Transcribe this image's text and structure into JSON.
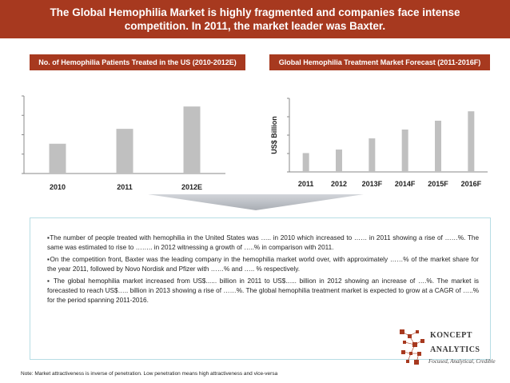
{
  "header": {
    "title_line1": "The Global Hemophilia Market  is highly fragmented and companies face intense",
    "title_line2": "competition. In  2011, the market leader was Baxter."
  },
  "colors": {
    "accent": "#a7391f",
    "bar": "#c0c0c0",
    "box_border": "#b7dde4"
  },
  "chart_data": [
    {
      "type": "bar",
      "title": "No. of Hemophilia Patients Treated in the US (2010-2012E)",
      "categories": [
        "2010",
        "2011",
        "2012E"
      ],
      "values": [
        48,
        72,
        108
      ],
      "ylim": [
        0,
        125
      ],
      "xlabel": "",
      "ylabel": "",
      "grid": false
    },
    {
      "type": "bar",
      "title": "Global Hemophilia Treatment Market Forecast (2011-2016F)",
      "categories": [
        "2011",
        "2012",
        "2013F",
        "2014F",
        "2015F",
        "2016F"
      ],
      "values": [
        32,
        38,
        57,
        72,
        87,
        103
      ],
      "ylim": [
        0,
        125
      ],
      "xlabel": "",
      "ylabel": "US$ Billion",
      "grid": false
    }
  ],
  "bullets": [
    "The number of people treated with hemophilia in the United States was ….. in 2010 which increased to …… in 2011 showing a rise of ……%. The same was estimated to rise to …….. in 2012 witnessing a growth of …..% in comparison with 2011.",
    "On the competition front, Baxter was the leading company in the hemophilia market world over, with approximately ……% of the market share for the year 2011, followed by  Novo Nordisk and  Pfizer with ……% and ….. % respectively.",
    " The global hemophilia market increased from US$...... billion in 2011 to US$...... billion in 2012 showing an increase of ….%. The market is forecasted to reach US$….. billion in 2013 showing a rise of ……%. The global hemophilia treatment market is expected to grow at a CAGR of …..% for the period spanning 2011-2016."
  ],
  "logo": {
    "line1": "KONCEPT",
    "line2": "ANALYTICS",
    "tagline": "Focused, Analytical, Credible"
  },
  "note": "Note: Market attractiveness is inverse of penetration. Low penetration means high attractiveness and vice-versa"
}
